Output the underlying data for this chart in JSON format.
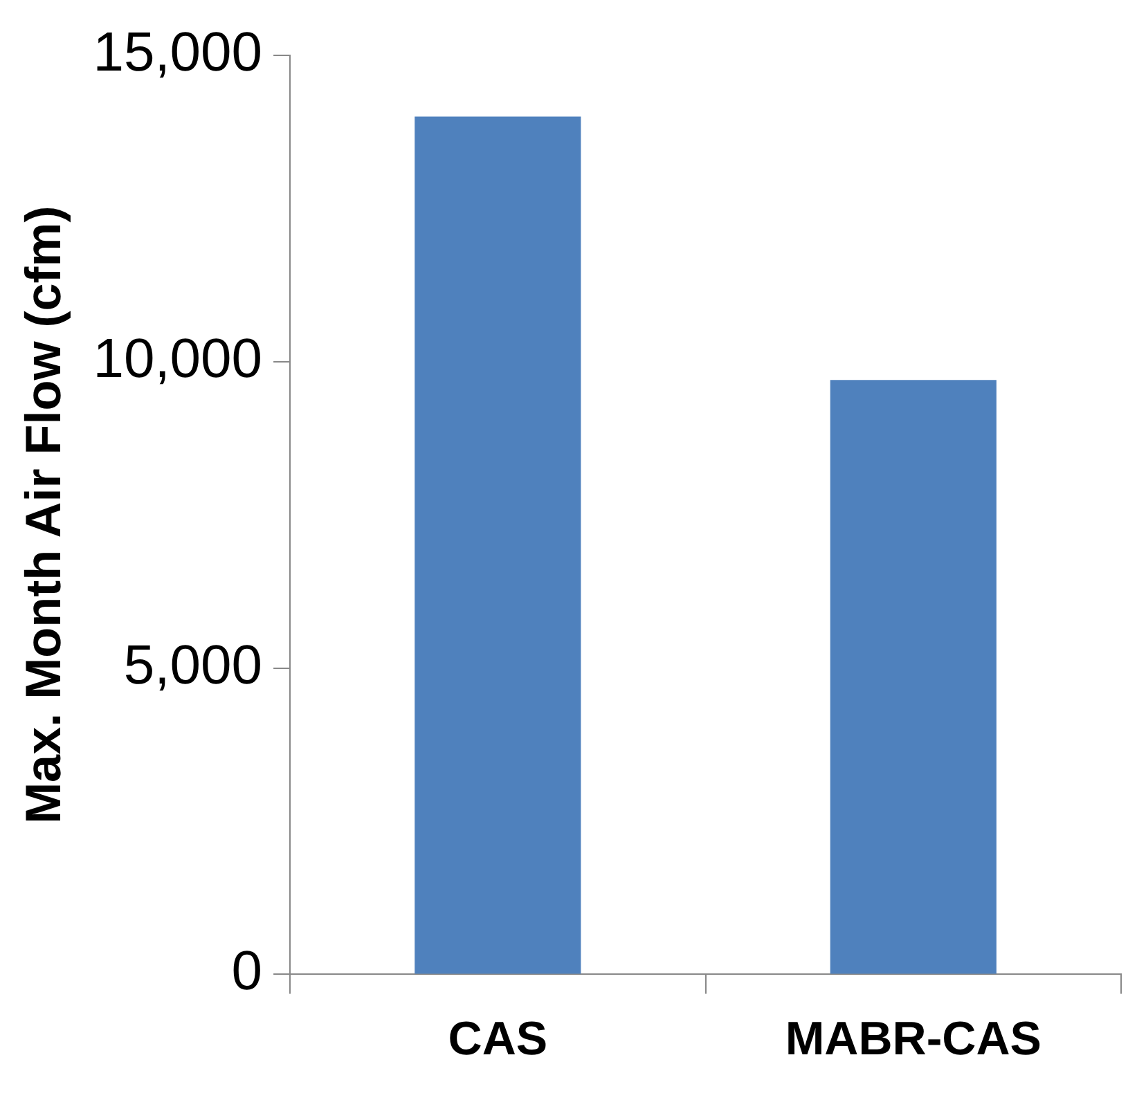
{
  "chart_data": {
    "type": "bar",
    "ylabel": "Max. Month Air Flow (cfm)",
    "categories": [
      "CAS",
      "MABR-CAS"
    ],
    "values": [
      14000,
      9700
    ],
    "color": "#4f81bd",
    "ylim": [
      0,
      15000
    ],
    "yticks": [
      {
        "value": 0,
        "label": "0"
      },
      {
        "value": 5000,
        "label": "5,000"
      },
      {
        "value": 10000,
        "label": "10,000"
      },
      {
        "value": 15000,
        "label": "15,000"
      }
    ],
    "grid": false,
    "legend": false
  }
}
